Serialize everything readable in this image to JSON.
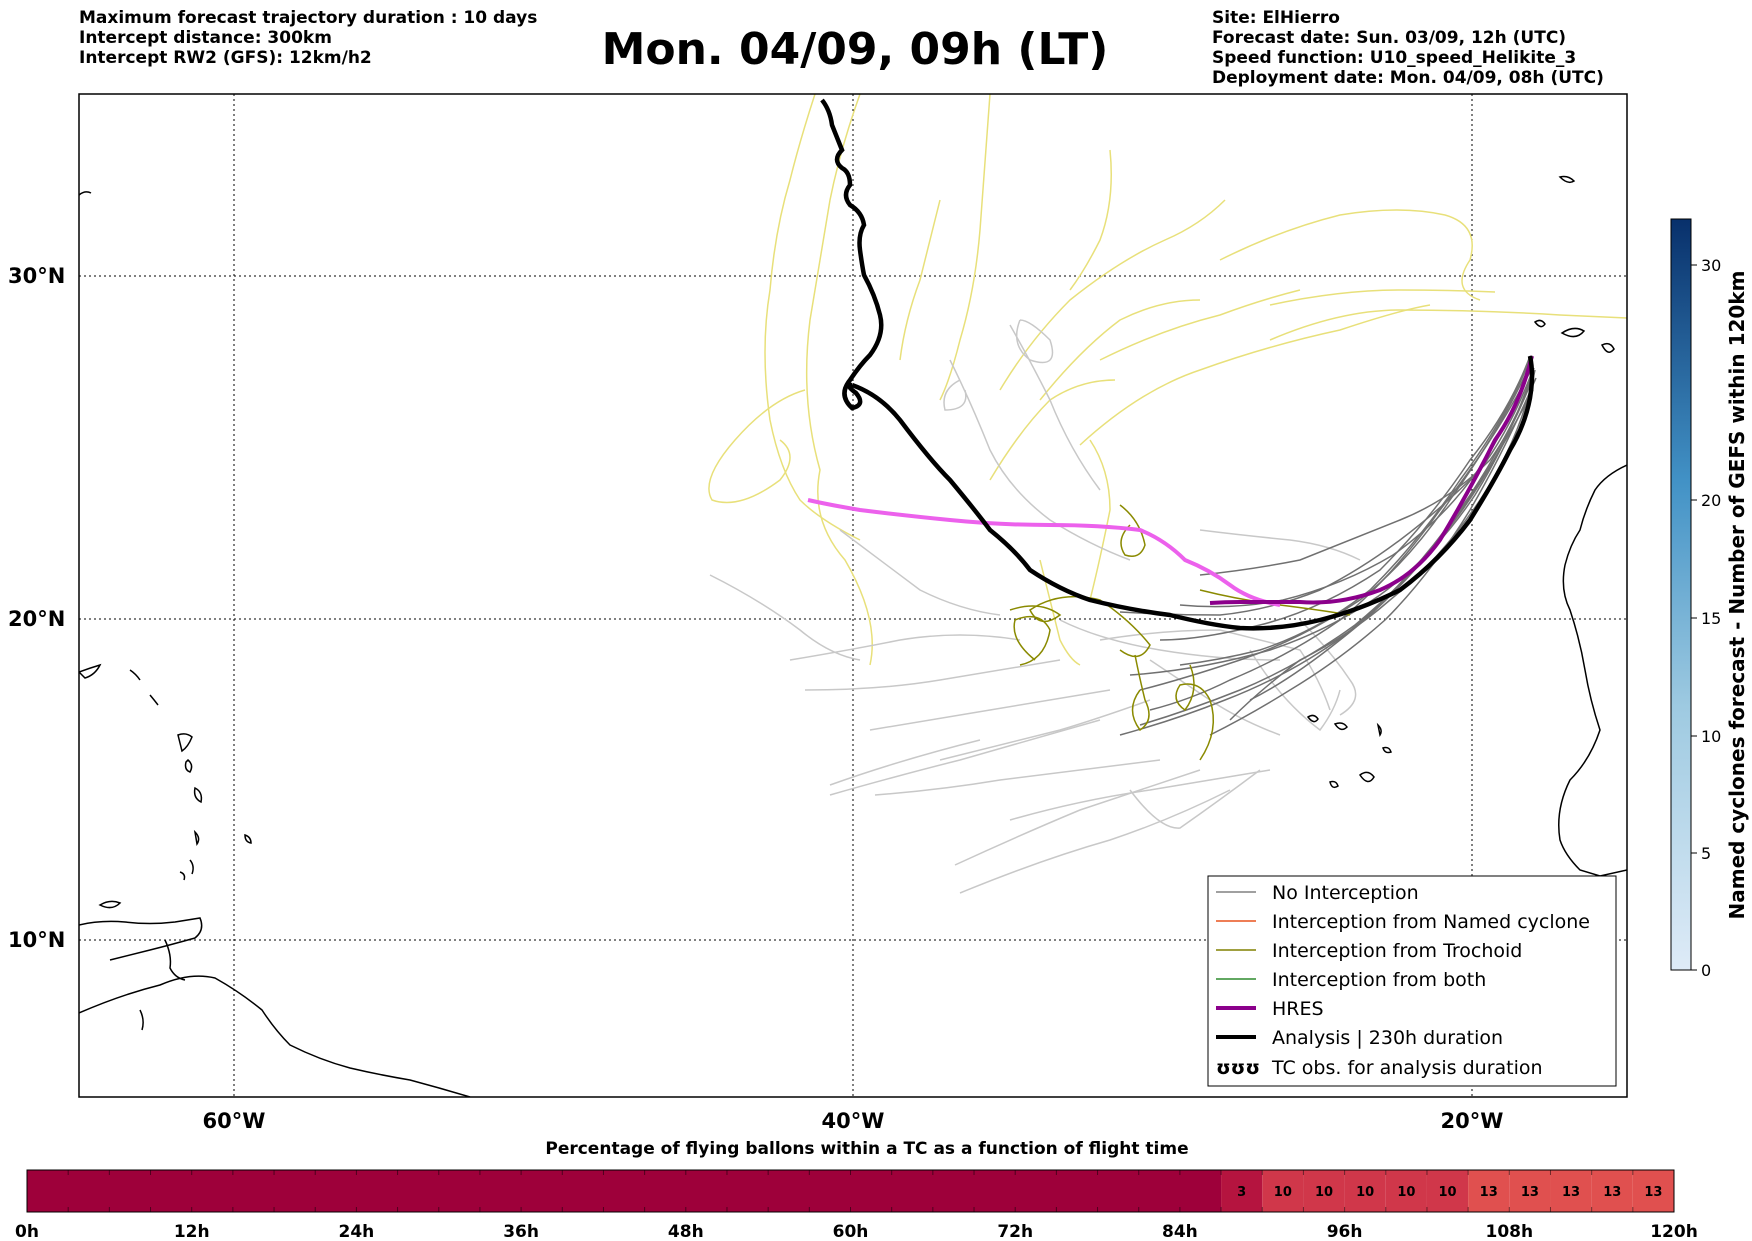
{
  "header_left": {
    "max_duration": "Maximum forecast trajectory duration : 10 days",
    "intercept_distance": "Intercept distance: 300km",
    "intercept_rw2": "Intercept RW2 (GFS):  12km/h2"
  },
  "header_right": {
    "site": "Site: ElHierro",
    "forecast_date": "Forecast date: Sun. 03/09, 12h (UTC)",
    "speed_function": "Speed function: U10_speed_Helikite_3",
    "deployment_date": "Deployment date: Mon. 04/09, 08h (UTC)"
  },
  "title": "Mon. 04/09, 09h (LT)",
  "map": {
    "lat_labels": [
      "30°N",
      "20°N",
      "10°N"
    ],
    "lon_labels": [
      "60°W",
      "40°W",
      "20°W"
    ],
    "grid": true,
    "legend": {
      "placement": "bottom-right",
      "items": [
        {
          "label": "No Interception",
          "color": "#808080",
          "style": "thin"
        },
        {
          "label": "Interception from Named cyclone",
          "color": "#e8541e",
          "style": "thin"
        },
        {
          "label": "Interception from Trochoid",
          "color": "#808000",
          "style": "thin"
        },
        {
          "label": "Interception from both",
          "color": "#2e8b2e",
          "style": "thin"
        },
        {
          "label": "HRES",
          "color": "#8b008b",
          "style": "thick"
        },
        {
          "label": "Analysis | 230h duration",
          "color": "#000000",
          "style": "thick"
        },
        {
          "label": "TC obs. for analysis duration",
          "color": "#000000",
          "style": "loops",
          "symbol": "ʊʊʊ"
        }
      ]
    },
    "colorbar": {
      "label": "Named cyclones forecast - Number of GEFS within 120km",
      "ticks": [
        "0",
        "5",
        "10",
        "15",
        "20",
        "30"
      ]
    }
  },
  "flight_bar": {
    "title": "Percentage of flying ballons within a TC as a function of flight time",
    "time_labels": [
      "0h",
      "12h",
      "24h",
      "36h",
      "48h",
      "60h",
      "72h",
      "84h",
      "96h",
      "108h",
      "120h"
    ],
    "segment_values": [
      "3",
      "10",
      "10",
      "10",
      "10",
      "10",
      "13",
      "13",
      "13",
      "13",
      "13"
    ],
    "colors": {
      "base": "#9e003a",
      "low": "#b5143f",
      "mid": "#d0374a",
      "high": "#e0504f"
    }
  }
}
